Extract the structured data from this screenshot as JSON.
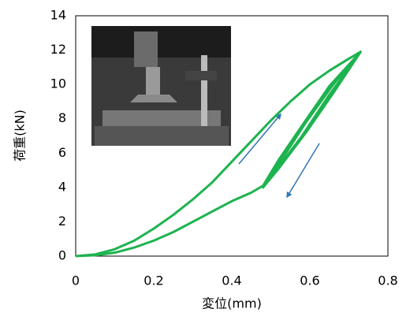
{
  "chart_data": {
    "type": "line",
    "xlabel": "変位(mm)",
    "ylabel": "荷重(kN)",
    "xlim": [
      0,
      0.8
    ],
    "xticks": [
      0,
      0.2,
      0.4,
      0.6,
      0.8
    ],
    "ylim": [
      0,
      14
    ],
    "yticks": [
      0,
      2,
      4,
      6,
      8,
      10,
      12,
      14
    ],
    "grid": false,
    "series": [
      {
        "color": "#1db34f",
        "x": [
          0,
          0.05,
          0.1,
          0.15,
          0.2,
          0.25,
          0.3,
          0.35,
          0.4,
          0.45,
          0.5,
          0.55,
          0.6,
          0.65,
          0.7,
          0.73,
          0.65,
          0.58,
          0.52,
          0.48,
          0.52,
          0.58,
          0.65,
          0.73,
          0.66,
          0.59,
          0.53,
          0.49,
          0.53,
          0.59,
          0.66,
          0.725,
          0.65,
          0.58,
          0.52,
          0.48,
          0.52,
          0.58,
          0.65,
          0.73,
          0.65,
          0.58,
          0.52,
          0.48,
          0.45,
          0.4,
          0.35,
          0.3,
          0.25,
          0.2,
          0.15,
          0.1,
          0.05,
          0
        ],
        "values": [
          0,
          0.1,
          0.4,
          0.9,
          1.6,
          2.4,
          3.3,
          4.3,
          5.5,
          6.7,
          7.9,
          9.0,
          10.0,
          10.8,
          11.5,
          11.9,
          9.4,
          7.0,
          5.2,
          4.1,
          5.6,
          7.6,
          9.9,
          11.9,
          9.5,
          7.2,
          5.4,
          4.3,
          5.7,
          7.8,
          10.0,
          11.8,
          9.3,
          6.9,
          5.1,
          4.0,
          5.5,
          7.5,
          9.8,
          11.9,
          9.4,
          7.0,
          5.2,
          4.1,
          3.7,
          3.2,
          2.6,
          2.0,
          1.4,
          0.9,
          0.5,
          0.2,
          0.05,
          0
        ]
      }
    ]
  }
}
